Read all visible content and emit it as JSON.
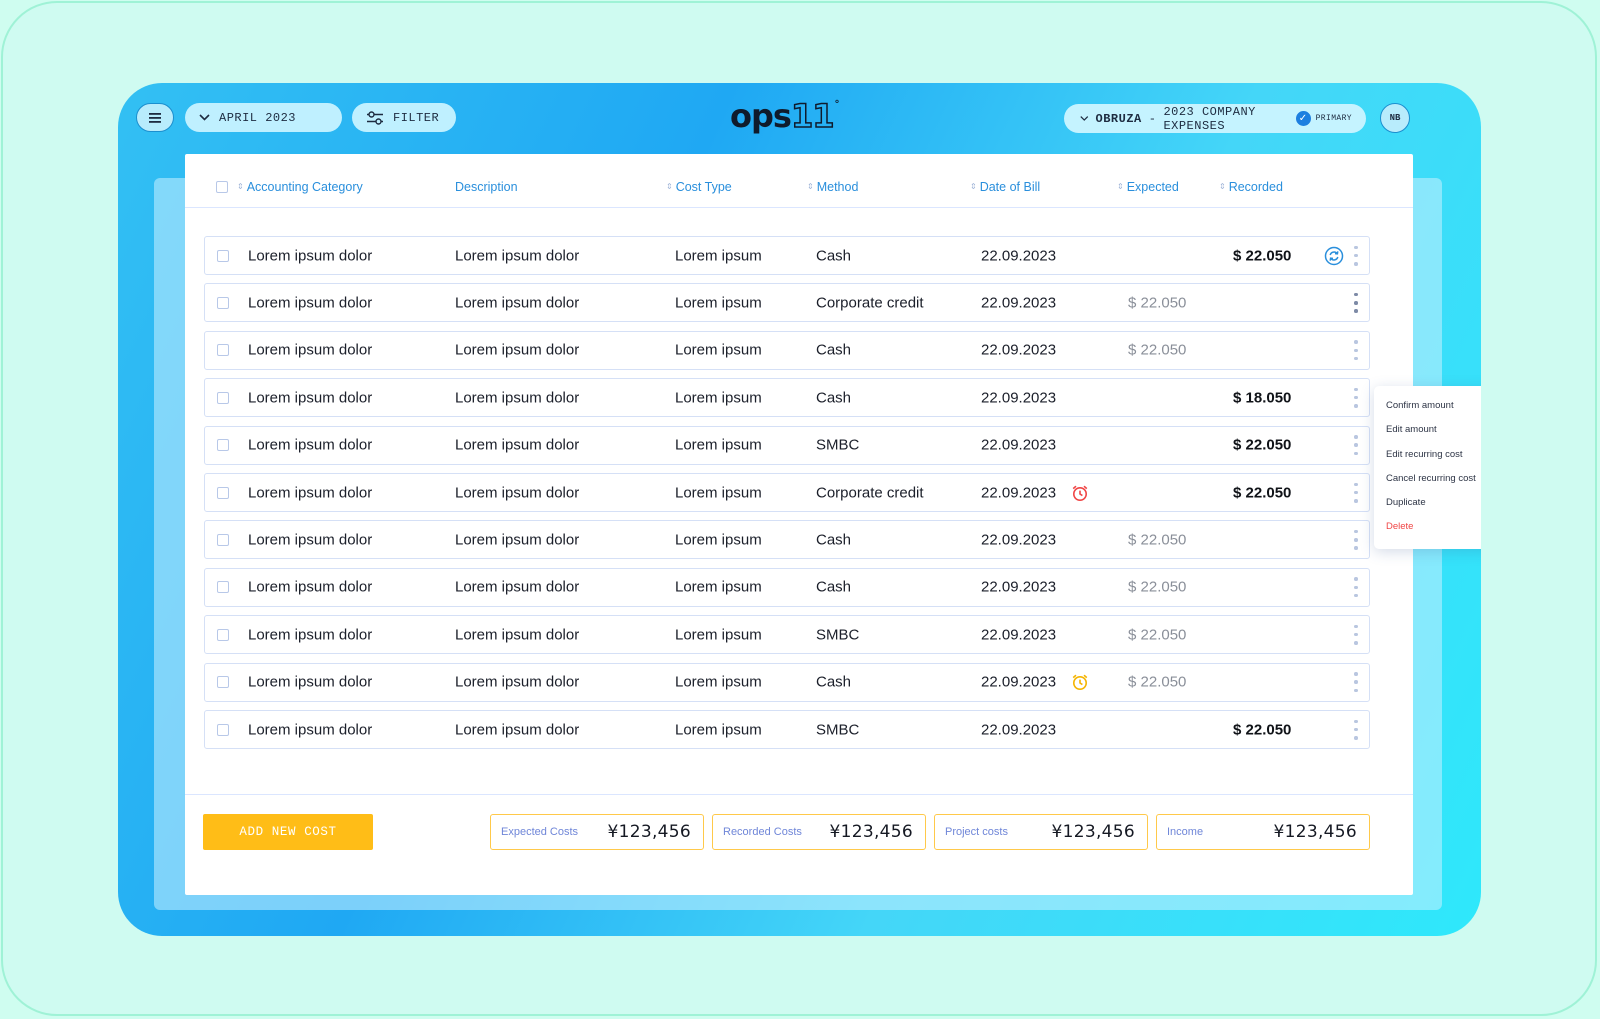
{
  "topbar": {
    "month": "APRIL 2023",
    "filter_label": "FILTER",
    "logo_main": "ops",
    "logo_suffix": "11",
    "logo_sup": "°",
    "company": {
      "name": "OBRUZA",
      "separator": "-",
      "project": "2023 COMPANY EXPENSES",
      "badge": "PRIMARY"
    },
    "avatar_initials": "NB"
  },
  "columns": [
    {
      "label": "Accounting Category",
      "sortable": true
    },
    {
      "label": "Description",
      "sortable": false
    },
    {
      "label": "Cost Type",
      "sortable": true
    },
    {
      "label": "Method",
      "sortable": true
    },
    {
      "label": "Date of Bill",
      "sortable": true
    },
    {
      "label": "Expected",
      "sortable": true
    },
    {
      "label": "Recorded",
      "sortable": true
    }
  ],
  "rows": [
    {
      "category": "Lorem ipsum dolor",
      "description": "Lorem ipsum dolor",
      "cost_type": "Lorem ipsum",
      "method": "Cash",
      "date": "22.09.2023",
      "expected": "",
      "recorded": "$ 22.050",
      "alarm": "",
      "sync": true
    },
    {
      "category": "Lorem ipsum dolor",
      "description": "Lorem ipsum dolor",
      "cost_type": "Lorem ipsum",
      "method": "Corporate credit",
      "date": "22.09.2023",
      "expected": "$ 22.050",
      "recorded": "",
      "alarm": "",
      "sync": false,
      "menu_open": true
    },
    {
      "category": "Lorem ipsum dolor",
      "description": "Lorem ipsum dolor",
      "cost_type": "Lorem ipsum",
      "method": "Cash",
      "date": "22.09.2023",
      "expected": "$ 22.050",
      "recorded": "",
      "alarm": "",
      "sync": false
    },
    {
      "category": "Lorem ipsum dolor",
      "description": "Lorem ipsum dolor",
      "cost_type": "Lorem ipsum",
      "method": "Cash",
      "date": "22.09.2023",
      "expected": "",
      "recorded": "$ 18.050",
      "alarm": "",
      "sync": false
    },
    {
      "category": "Lorem ipsum dolor",
      "description": "Lorem ipsum dolor",
      "cost_type": "Lorem ipsum",
      "method": "SMBC",
      "date": "22.09.2023",
      "expected": "",
      "recorded": "$ 22.050",
      "alarm": "",
      "sync": false
    },
    {
      "category": "Lorem ipsum dolor",
      "description": "Lorem ipsum dolor",
      "cost_type": "Lorem ipsum",
      "method": "Corporate credit",
      "date": "22.09.2023",
      "expected": "",
      "recorded": "$ 22.050",
      "alarm": "#f04545",
      "sync": false
    },
    {
      "category": "Lorem ipsum dolor",
      "description": "Lorem ipsum dolor",
      "cost_type": "Lorem ipsum",
      "method": "Cash",
      "date": "22.09.2023",
      "expected": "$ 22.050",
      "recorded": "",
      "alarm": "",
      "sync": false
    },
    {
      "category": "Lorem ipsum dolor",
      "description": "Lorem ipsum dolor",
      "cost_type": "Lorem ipsum",
      "method": "Cash",
      "date": "22.09.2023",
      "expected": "$ 22.050",
      "recorded": "",
      "alarm": "",
      "sync": false
    },
    {
      "category": "Lorem ipsum dolor",
      "description": "Lorem ipsum dolor",
      "cost_type": "Lorem ipsum",
      "method": "SMBC",
      "date": "22.09.2023",
      "expected": "$ 22.050",
      "recorded": "",
      "alarm": "",
      "sync": false
    },
    {
      "category": "Lorem ipsum dolor",
      "description": "Lorem ipsum dolor",
      "cost_type": "Lorem ipsum",
      "method": "Cash",
      "date": "22.09.2023",
      "expected": "$ 22.050",
      "recorded": "",
      "alarm": "#f5b400",
      "sync": false
    },
    {
      "category": "Lorem ipsum dolor",
      "description": "Lorem ipsum dolor",
      "cost_type": "Lorem ipsum",
      "method": "SMBC",
      "date": "22.09.2023",
      "expected": "",
      "recorded": "$ 22.050",
      "alarm": "",
      "sync": false
    }
  ],
  "context_menu": {
    "items": [
      "Confirm amount",
      "Edit amount",
      "Edit recurring cost",
      "Cancel recurring cost",
      "Duplicate"
    ],
    "danger_item": "Delete"
  },
  "footer": {
    "add_label": "ADD NEW COST",
    "stats": [
      {
        "label": "Expected Costs",
        "value": "¥123,456"
      },
      {
        "label": "Recorded Costs",
        "value": "¥123,456"
      },
      {
        "label": "Project costs",
        "value": "¥123,456"
      },
      {
        "label": "Income",
        "value": "¥123,456"
      }
    ]
  },
  "icons": {
    "menu": "hamburger-icon",
    "month_dropdown": "chevron-down-icon",
    "filter": "sliders-icon",
    "sync": "sync-icon",
    "alarm": "alarm-clock-icon",
    "more": "more-vertical-icon",
    "check": "check-circle-icon"
  },
  "colors": {
    "accent": "#2a8fdc",
    "add_button": "#ffbd17",
    "stat_border": "#ffc94a",
    "danger": "#f04545"
  }
}
